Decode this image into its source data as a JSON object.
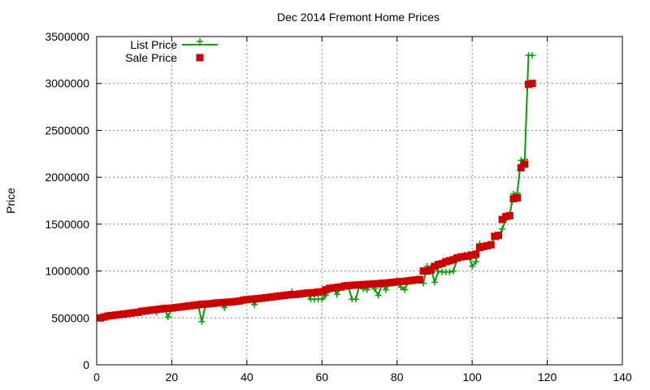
{
  "chart_data": {
    "type": "line",
    "title": "Dec 2014 Fremont Home Prices",
    "xlabel": "",
    "ylabel": "Price",
    "xlim": [
      0,
      140
    ],
    "ylim": [
      0,
      3500000
    ],
    "xticks": [
      0,
      20,
      40,
      60,
      80,
      100,
      120,
      140
    ],
    "yticks": [
      0,
      500000,
      1000000,
      1500000,
      2000000,
      2500000,
      3000000,
      3500000
    ],
    "grid": true,
    "legend_position": "top-left",
    "colors": {
      "list": "#00a000",
      "sale": "#cc0000"
    },
    "series": [
      {
        "name": "List Price",
        "style": "line-plus",
        "values": [
          500000,
          510000,
          530000,
          520000,
          530000,
          540000,
          540000,
          545000,
          550000,
          555000,
          560000,
          570000,
          575000,
          580000,
          585000,
          560000,
          595000,
          600000,
          510000,
          605000,
          610000,
          615000,
          620000,
          625000,
          630000,
          635000,
          640000,
          460000,
          640000,
          645000,
          650000,
          655000,
          660000,
          610000,
          665000,
          670000,
          675000,
          680000,
          690000,
          695000,
          700000,
          640000,
          705000,
          710000,
          715000,
          720000,
          725000,
          740000,
          735000,
          740000,
          745000,
          780000,
          750000,
          755000,
          760000,
          765000,
          700000,
          700000,
          700000,
          700000,
          740000,
          800000,
          815000,
          750000,
          825000,
          830000,
          840000,
          700000,
          700000,
          850000,
          810000,
          800000,
          860000,
          810000,
          740000,
          860000,
          800000,
          870000,
          875000,
          880000,
          830000,
          800000,
          890000,
          895000,
          900000,
          900000,
          870000,
          1050000,
          1040000,
          880000,
          1000000,
          990000,
          990000,
          990000,
          1000000,
          1130000,
          1150000,
          1170000,
          1180000,
          1050000,
          1100000,
          1290000,
          1260000,
          1270000,
          1280000,
          1370000,
          1360000,
          1450000,
          1550000,
          1600000,
          1820000,
          1830000,
          2180000,
          2190000,
          3300000,
          3300000
        ]
      },
      {
        "name": "Sale Price",
        "style": "square-points",
        "values": [
          500000,
          510000,
          520000,
          525000,
          530000,
          535000,
          540000,
          545000,
          550000,
          555000,
          560000,
          570000,
          575000,
          580000,
          585000,
          590000,
          595000,
          600000,
          602000,
          605000,
          610000,
          615000,
          620000,
          625000,
          630000,
          635000,
          640000,
          645000,
          648000,
          650000,
          655000,
          660000,
          662000,
          665000,
          668000,
          670000,
          675000,
          680000,
          690000,
          695000,
          700000,
          702000,
          705000,
          710000,
          715000,
          720000,
          725000,
          730000,
          735000,
          740000,
          745000,
          748000,
          750000,
          755000,
          760000,
          765000,
          768000,
          770000,
          775000,
          780000,
          800000,
          815000,
          820000,
          825000,
          830000,
          840000,
          845000,
          848000,
          850000,
          852000,
          855000,
          858000,
          860000,
          862000,
          865000,
          870000,
          872000,
          875000,
          880000,
          885000,
          888000,
          890000,
          895000,
          900000,
          905000,
          910000,
          1000000,
          1000000,
          1010000,
          1050000,
          1070000,
          1080000,
          1100000,
          1110000,
          1120000,
          1140000,
          1150000,
          1155000,
          1160000,
          1170000,
          1180000,
          1250000,
          1260000,
          1270000,
          1280000,
          1370000,
          1380000,
          1550000,
          1580000,
          1590000,
          1770000,
          1780000,
          2100000,
          2140000,
          2990000,
          3000000
        ]
      }
    ]
  }
}
